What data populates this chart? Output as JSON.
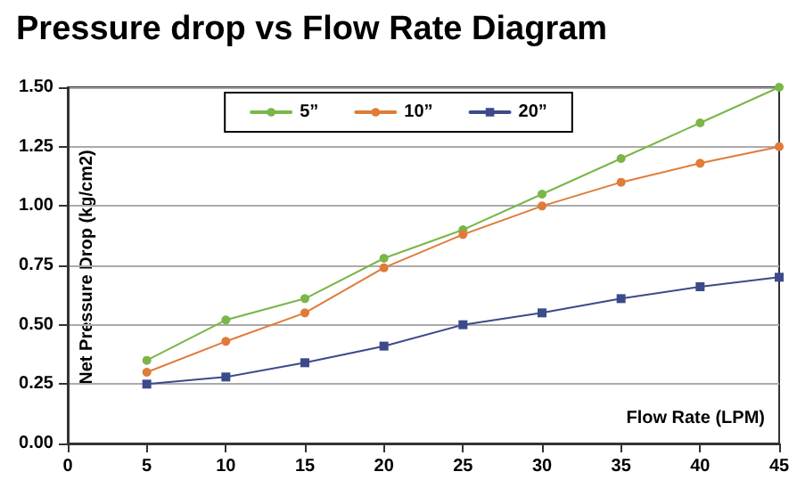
{
  "chart_data": {
    "type": "line",
    "title": "Pressure drop vs Flow Rate Diagram",
    "xlabel": "Flow Rate (LPM)",
    "ylabel": "Net Pressure Drop (kg/cm2)",
    "x": [
      5,
      10,
      15,
      20,
      25,
      30,
      35,
      40,
      45
    ],
    "series": [
      {
        "name": "5”",
        "color": "#7ab648",
        "marker": "circle",
        "values": [
          0.35,
          0.52,
          0.61,
          0.78,
          0.9,
          1.05,
          1.2,
          1.35,
          1.5
        ]
      },
      {
        "name": "10”",
        "color": "#e07b39",
        "marker": "circle",
        "values": [
          0.3,
          0.43,
          0.55,
          0.74,
          0.88,
          1.0,
          1.1,
          1.18,
          1.25
        ]
      },
      {
        "name": "20”",
        "color": "#3b4a8a",
        "marker": "square",
        "values": [
          0.25,
          0.28,
          0.34,
          0.41,
          0.5,
          0.55,
          0.61,
          0.66,
          0.7
        ]
      }
    ],
    "xlim": [
      0,
      45
    ],
    "xticks": [
      0,
      5,
      10,
      15,
      20,
      25,
      30,
      35,
      40,
      45
    ],
    "ylim": [
      0,
      1.5
    ],
    "yticks": [
      {
        "value": 0,
        "label": "0.00"
      },
      {
        "value": 0.25,
        "label": "0.25"
      },
      {
        "value": 0.5,
        "label": "0.50"
      },
      {
        "value": 0.75,
        "label": "0.75"
      },
      {
        "value": 1,
        "label": "1.00"
      },
      {
        "value": 1.25,
        "label": "1.25"
      },
      {
        "value": 1.5,
        "label": "1.50"
      }
    ],
    "grid": "y",
    "legend": "top",
    "line_style": "solid"
  }
}
